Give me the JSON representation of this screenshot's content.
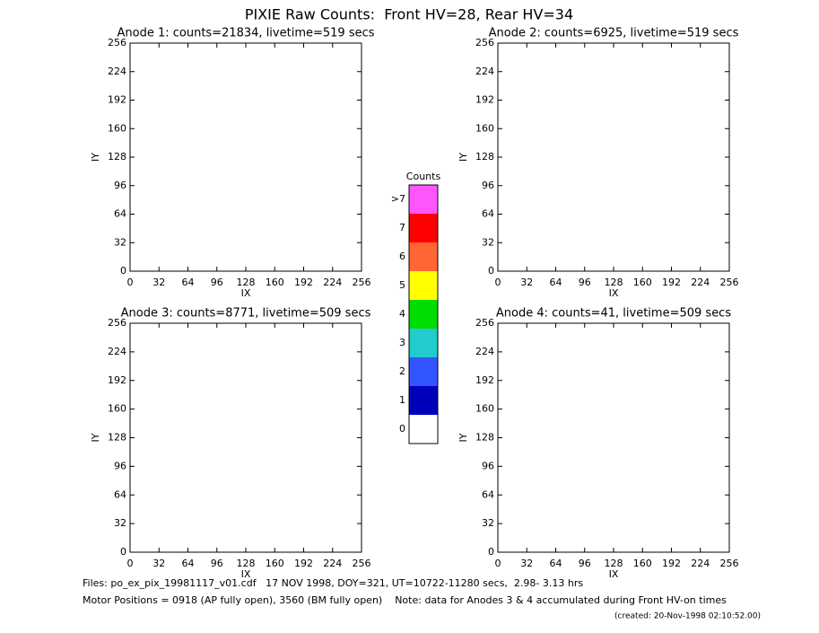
{
  "title": "PIXIE Raw Counts:  Front HV=28, Rear HV=34",
  "chart_data": [
    {
      "type": "image",
      "title": "Anode 1: counts=21834, livetime=519 secs",
      "xlabel": "IX",
      "ylabel": "IY",
      "xlim": [
        0,
        256
      ],
      "ylim": [
        0,
        256
      ],
      "xticks": [
        0,
        32,
        64,
        96,
        128,
        160,
        192,
        224,
        256
      ],
      "yticks": [
        0,
        32,
        64,
        96,
        128,
        160,
        192,
        224,
        256
      ]
    },
    {
      "type": "image",
      "title": "Anode 2: counts=6925, livetime=519 secs",
      "xlabel": "IX",
      "ylabel": "IY",
      "xlim": [
        0,
        256
      ],
      "ylim": [
        0,
        256
      ],
      "xticks": [
        0,
        32,
        64,
        96,
        128,
        160,
        192,
        224,
        256
      ],
      "yticks": [
        0,
        32,
        64,
        96,
        128,
        160,
        192,
        224,
        256
      ]
    },
    {
      "type": "image",
      "title": "Anode 3: counts=8771, livetime=509 secs",
      "xlabel": "IX",
      "ylabel": "IY",
      "xlim": [
        0,
        256
      ],
      "ylim": [
        0,
        256
      ],
      "xticks": [
        0,
        32,
        64,
        96,
        128,
        160,
        192,
        224,
        256
      ],
      "yticks": [
        0,
        32,
        64,
        96,
        128,
        160,
        192,
        224,
        256
      ]
    },
    {
      "type": "image",
      "title": "Anode 4: counts=41, livetime=509 secs",
      "xlabel": "IX",
      "ylabel": "IY",
      "xlim": [
        0,
        256
      ],
      "ylim": [
        0,
        256
      ],
      "xticks": [
        0,
        32,
        64,
        96,
        128,
        160,
        192,
        224,
        256
      ],
      "yticks": [
        0,
        32,
        64,
        96,
        128,
        160,
        192,
        224,
        256
      ]
    }
  ],
  "colorbar": {
    "title": "Counts",
    "levels": [
      {
        "label": ">7",
        "color": "#ff55ff"
      },
      {
        "label": "7",
        "color": "#ff0000"
      },
      {
        "label": "6",
        "color": "#ff6633"
      },
      {
        "label": "5",
        "color": "#ffff00"
      },
      {
        "label": "4",
        "color": "#00dd00"
      },
      {
        "label": "3",
        "color": "#22cccc"
      },
      {
        "label": "2",
        "color": "#3355ff"
      },
      {
        "label": "1",
        "color": "#0000bb"
      },
      {
        "label": "0",
        "color": "#ffffff"
      }
    ]
  },
  "footer": {
    "files": "Files: po_ex_pix_19981117_v01.cdf   17 NOV 1998, DOY=321, UT=10722-11280 secs,  2.98- 3.13 hrs",
    "motor": "Motor Positions = 0918 (AP fully open), 3560 (BM fully open)    Note: data for Anodes 3 & 4 accumulated during Front HV-on times",
    "created": "(created: 20-Nov-1998 02:10:52.00)"
  }
}
